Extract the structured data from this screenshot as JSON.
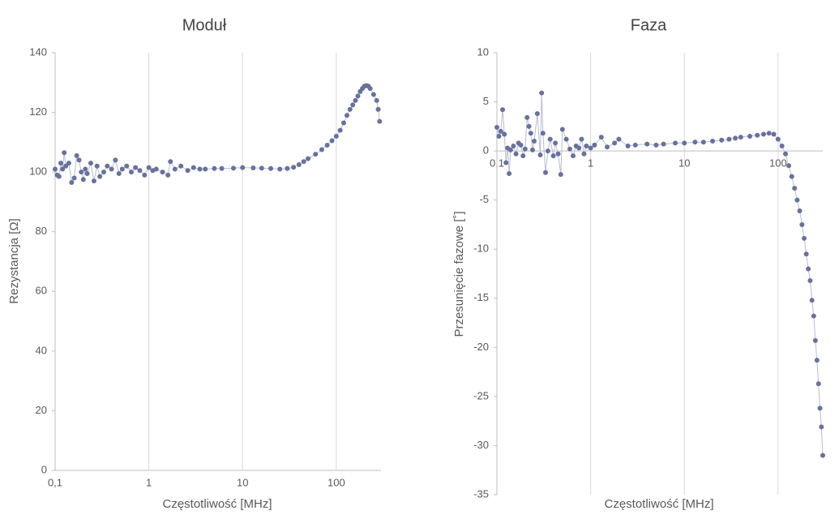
{
  "chart_data": [
    {
      "type": "scatter-line",
      "title": "Moduł",
      "xlabel": "Częstotliwość [MHz]",
      "ylabel": "Rezystancja [Ω]",
      "log_x": true,
      "color": "#68719d",
      "line_color": "#b9bdd2",
      "xlim": [
        0.1,
        300
      ],
      "xticks": [
        {
          "value": 0.1,
          "label": "0,1"
        },
        1,
        10,
        100
      ],
      "ylim": [
        0,
        140
      ],
      "yticks": [
        0,
        20,
        40,
        60,
        80,
        100,
        120,
        140
      ],
      "grid_x": true,
      "x": [
        0.1,
        0.105,
        0.11,
        0.115,
        0.12,
        0.125,
        0.13,
        0.14,
        0.15,
        0.16,
        0.17,
        0.18,
        0.19,
        0.2,
        0.21,
        0.22,
        0.24,
        0.26,
        0.28,
        0.3,
        0.33,
        0.36,
        0.4,
        0.44,
        0.48,
        0.52,
        0.58,
        0.65,
        0.72,
        0.8,
        0.9,
        1,
        1.1,
        1.2,
        1.4,
        1.6,
        1.7,
        1.9,
        2.2,
        2.6,
        3,
        3.5,
        4,
        5,
        6,
        8,
        10,
        13,
        16,
        20,
        25,
        30,
        35,
        40,
        45,
        50,
        60,
        70,
        80,
        90,
        100,
        110,
        120,
        130,
        140,
        150,
        160,
        170,
        180,
        190,
        200,
        210,
        220,
        230,
        250,
        270,
        280,
        290
      ],
      "values": [
        101,
        99,
        98.5,
        103,
        101,
        106.5,
        102,
        103,
        96.5,
        98,
        105.5,
        104,
        100,
        97.5,
        101,
        99.5,
        103,
        97,
        102,
        98.5,
        100,
        102,
        101,
        104,
        99.5,
        101,
        102,
        100,
        101.5,
        100.5,
        99,
        101.5,
        100.5,
        101,
        100,
        99,
        103.5,
        101,
        102,
        100.5,
        101.5,
        101,
        101,
        101.2,
        101.2,
        101.3,
        101.5,
        101.4,
        101.3,
        101.2,
        101,
        101.2,
        101.6,
        102.5,
        103.5,
        104.5,
        106,
        107.5,
        109,
        110.5,
        112,
        114,
        116.5,
        119,
        121,
        122.5,
        124,
        125.5,
        127,
        128,
        128.8,
        129,
        128.8,
        128,
        126,
        124,
        121,
        117
      ]
    },
    {
      "type": "scatter-line",
      "title": "Faza",
      "xlabel": "Częstotliwość [MHz]",
      "ylabel": "Przesunięcie fazowe [˚]",
      "log_x": true,
      "color": "#68719d",
      "line_color": "#b9bdd2",
      "xlim": [
        0.1,
        300
      ],
      "xticks": [
        {
          "value": 0.1,
          "label": "0,1"
        },
        1,
        10,
        100
      ],
      "ylim": [
        -35,
        10
      ],
      "yticks": [
        -35,
        -30,
        -25,
        -20,
        -15,
        -10,
        -5,
        0,
        5,
        10
      ],
      "grid_x": true,
      "x": [
        0.1,
        0.105,
        0.11,
        0.115,
        0.12,
        0.125,
        0.13,
        0.135,
        0.14,
        0.15,
        0.16,
        0.17,
        0.18,
        0.19,
        0.2,
        0.21,
        0.22,
        0.23,
        0.24,
        0.25,
        0.27,
        0.29,
        0.3,
        0.31,
        0.33,
        0.35,
        0.37,
        0.4,
        0.42,
        0.45,
        0.48,
        0.5,
        0.55,
        0.6,
        0.65,
        0.7,
        0.75,
        0.8,
        0.85,
        0.9,
        1,
        1.1,
        1.3,
        1.5,
        1.8,
        2,
        2.5,
        3,
        4,
        5,
        6,
        8,
        10,
        13,
        16,
        20,
        25,
        30,
        35,
        40,
        50,
        60,
        70,
        80,
        90,
        100,
        110,
        120,
        130,
        140,
        150,
        160,
        170,
        180,
        190,
        200,
        210,
        220,
        230,
        240,
        250,
        260,
        270,
        280,
        290,
        300
      ],
      "values": [
        2.4,
        1.5,
        2,
        4.2,
        1.7,
        -1.2,
        0.3,
        -2.3,
        0.1,
        0.5,
        -0.3,
        0.8,
        0.6,
        -0.5,
        0.2,
        3.4,
        2.5,
        1.8,
        0.1,
        1,
        3.8,
        -0.4,
        5.9,
        1.8,
        -2.2,
        0,
        1.2,
        -0.5,
        0.8,
        -0.3,
        -2.4,
        2.2,
        1.2,
        0.2,
        -0.5,
        0.5,
        0.3,
        1.2,
        -0.3,
        0.5,
        0.3,
        0.6,
        1.4,
        0.4,
        0.8,
        1.2,
        0.5,
        0.6,
        0.7,
        0.6,
        0.7,
        0.8,
        0.8,
        0.9,
        0.9,
        1,
        1.1,
        1.2,
        1.3,
        1.4,
        1.5,
        1.6,
        1.7,
        1.8,
        1.7,
        1.2,
        0.5,
        -0.3,
        -1.5,
        -2.6,
        -3.8,
        -5,
        -6.1,
        -7.5,
        -8.9,
        -10.5,
        -12,
        -13.2,
        -15.2,
        -16.8,
        -19.3,
        -21.3,
        -23.7,
        -26.2,
        -28.1,
        -31
      ]
    }
  ]
}
